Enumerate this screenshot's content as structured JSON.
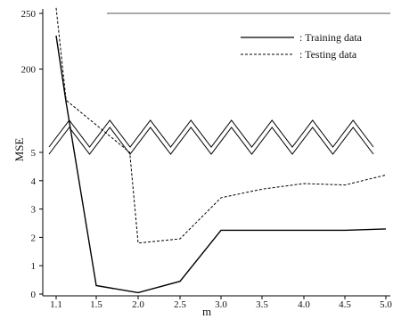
{
  "chart_data": {
    "type": "line",
    "title": "",
    "xlabel": "m",
    "ylabel": "MSE",
    "x": [
      1.1,
      1.2,
      1.5,
      2.0,
      2.5,
      3.0,
      3.5,
      4.0,
      4.5,
      5.0
    ],
    "x_ticks": [
      "1.1",
      "1.5",
      "2.0",
      "2.5",
      "3.0",
      "3.5",
      "4.0",
      "4.5",
      "5.0"
    ],
    "y_ticks_lower": [
      "0",
      "1",
      "2",
      "3",
      "4",
      "5"
    ],
    "y_ticks_upper": [
      "200",
      "250"
    ],
    "y_axis_break": true,
    "legend_position": "top-right",
    "series": [
      {
        "name": ": Training data",
        "line_style": "solid",
        "points": [
          [
            1.1,
            230
          ],
          [
            1.2,
            170
          ],
          [
            1.5,
            0.3
          ],
          [
            2.0,
            0.05
          ],
          [
            2.5,
            0.45
          ],
          [
            3.0,
            2.25
          ],
          [
            3.5,
            2.25
          ],
          [
            4.0,
            2.25
          ],
          [
            4.5,
            2.25
          ],
          [
            5.0,
            2.3
          ]
        ]
      },
      {
        "name": ": Testing data",
        "line_style": "dashed",
        "points": [
          [
            1.1,
            255
          ],
          [
            1.2,
            172
          ],
          [
            1.9,
            5.0
          ],
          [
            2.0,
            1.8
          ],
          [
            2.5,
            1.95
          ],
          [
            3.0,
            3.4
          ],
          [
            3.5,
            3.7
          ],
          [
            4.0,
            3.9
          ],
          [
            4.5,
            3.85
          ],
          [
            5.0,
            4.2
          ]
        ]
      }
    ]
  }
}
